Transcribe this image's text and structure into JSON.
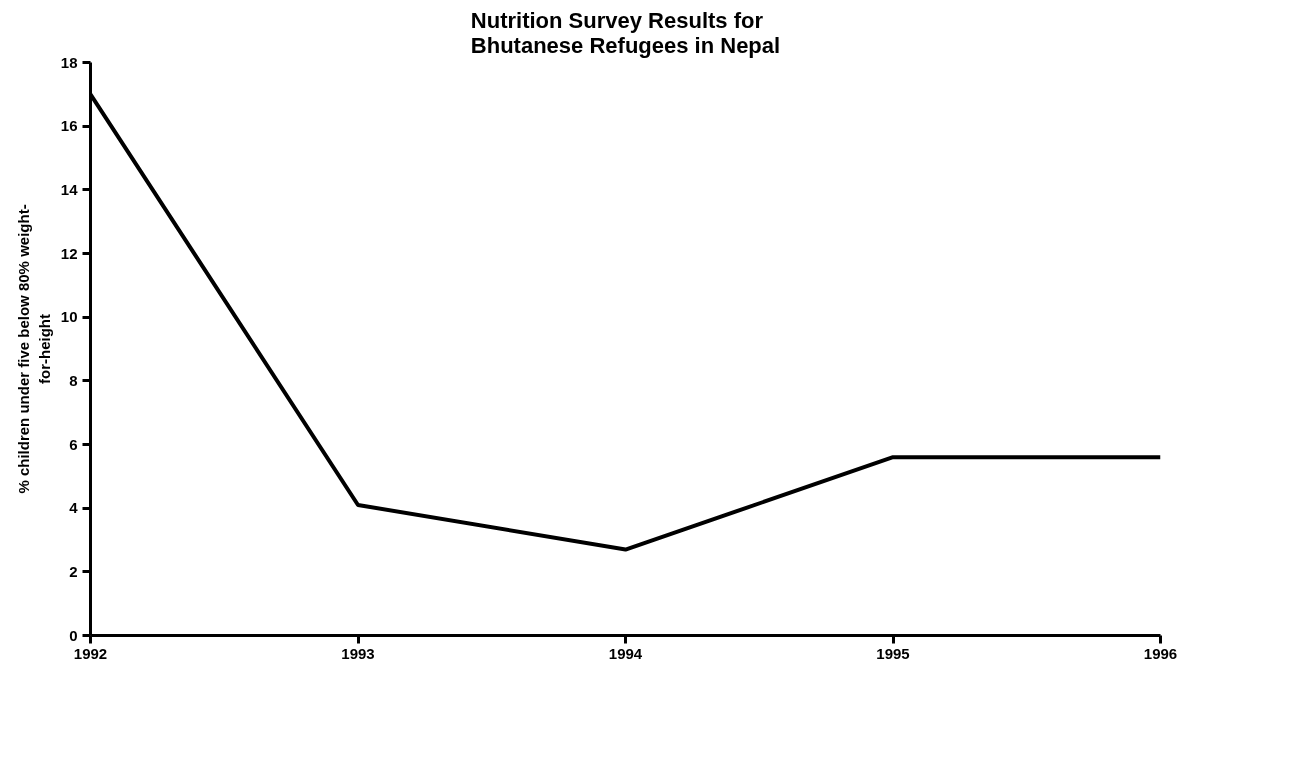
{
  "chart_data": {
    "type": "line",
    "title": "Nutrition Survey Results for\nBhutanese Refugees in Nepal",
    "ylabel": "% children under five below 80% weight-\nfor-height",
    "x": [
      1992,
      1993,
      1994,
      1995,
      1996
    ],
    "series": [
      {
        "color": "#000000",
        "values": [
          17,
          4.1,
          2.7,
          5.6,
          5.6
        ]
      }
    ],
    "xlim": [
      1992,
      1996
    ],
    "xticks": [
      1992,
      1993,
      1994,
      1995,
      1996
    ],
    "ylim": [
      0,
      18
    ],
    "yticks": [
      0,
      2,
      4,
      6,
      8,
      10,
      12,
      14,
      16,
      18
    ],
    "grid": false,
    "marker": "none",
    "line_style": "solid"
  }
}
